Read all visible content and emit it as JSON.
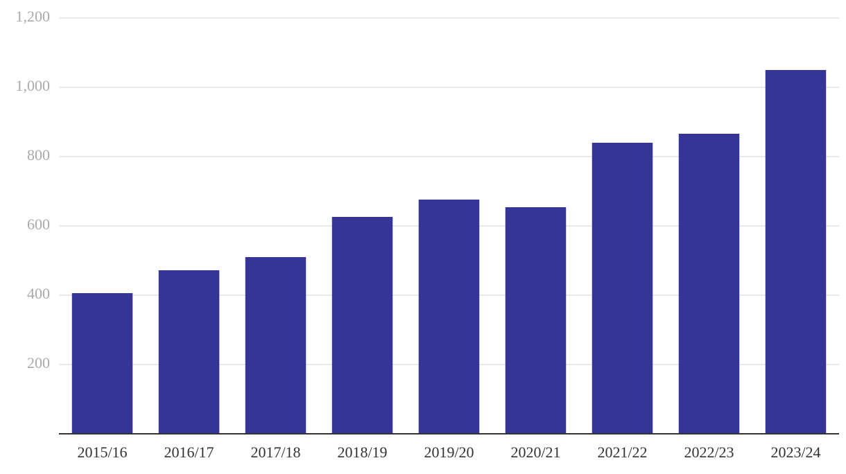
{
  "chart_data": {
    "type": "bar",
    "categories": [
      "2015/16",
      "2016/17",
      "2017/18",
      "2018/19",
      "2019/20",
      "2020/21",
      "2021/22",
      "2022/23",
      "2023/24"
    ],
    "values": [
      406,
      472,
      510,
      626,
      676,
      654,
      840,
      866,
      1050
    ],
    "color": "#353597",
    "ylim": [
      0,
      1200
    ],
    "yticks": [
      200,
      400,
      600,
      800,
      {
        "value": 1000,
        "label": "1,000"
      },
      {
        "value": 1200,
        "label": "1,200"
      }
    ],
    "grid": true
  }
}
